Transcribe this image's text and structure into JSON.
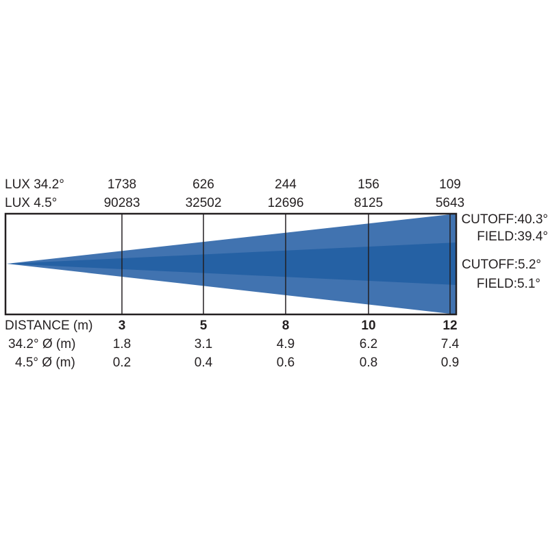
{
  "colors": {
    "outer_beam": "#4173b0",
    "inner_beam": "#2561a4",
    "frame": "#231f20"
  },
  "rows": {
    "lux_wide_label": "LUX  34.2°",
    "lux_narrow_label": "LUX  4.5°",
    "distance_label": "DISTANCE (m)",
    "dia_wide_label": "34.2° Ø (m)",
    "dia_narrow_label": "4.5° Ø (m)"
  },
  "columns": [
    {
      "distance": "3",
      "lux_wide": "1738",
      "lux_narrow": "90283",
      "dia_wide": "1.8",
      "dia_narrow": "0.2"
    },
    {
      "distance": "5",
      "lux_wide": "626",
      "lux_narrow": "32502",
      "dia_wide": "3.1",
      "dia_narrow": "0.4"
    },
    {
      "distance": "8",
      "lux_wide": "244",
      "lux_narrow": "12696",
      "dia_wide": "4.9",
      "dia_narrow": "0.6"
    },
    {
      "distance": "10",
      "lux_wide": "156",
      "lux_narrow": "8125",
      "dia_wide": "6.2",
      "dia_narrow": "0.8"
    },
    {
      "distance": "12",
      "lux_wide": "109",
      "lux_narrow": "5643",
      "dia_wide": "7.4",
      "dia_narrow": "0.9"
    }
  ],
  "angles": {
    "wide_cutoff": "CUTOFF:40.3°",
    "wide_field": "FIELD:39.4°",
    "narrow_cutoff": "CUTOFF:5.2°",
    "narrow_field": "FIELD:5.1°"
  }
}
